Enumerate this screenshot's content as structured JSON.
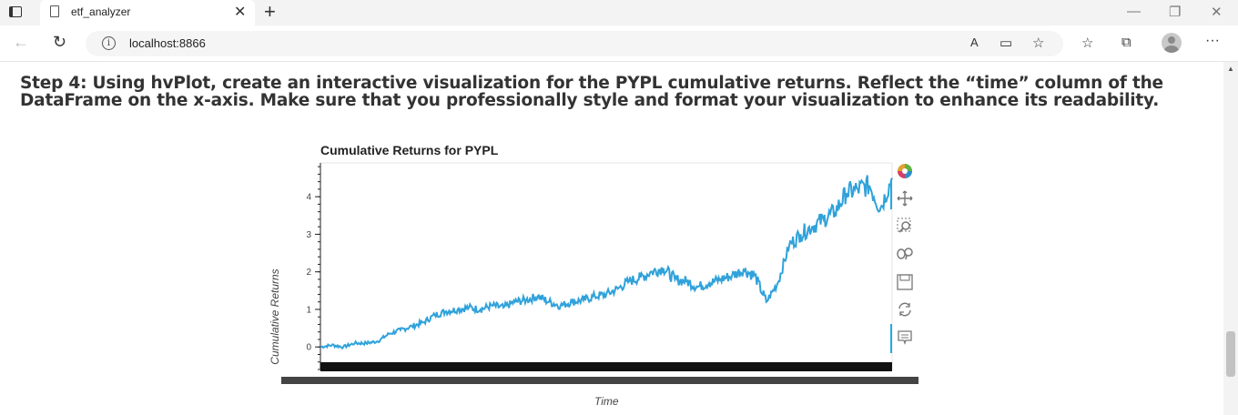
{
  "browser": {
    "tab": {
      "title": "etf_analyzer"
    },
    "address": {
      "url": "localhost:8866"
    }
  },
  "page": {
    "heading": "Step 4: Using hvPlot, create an interactive visualization for the PYPL cumulative returns. Reflect the “time” column of the DataFrame on the x-axis. Make sure that you professionally style and format your visualization to enhance its readability."
  },
  "chart_data": {
    "type": "line",
    "title": "Cumulative Returns for PYPL",
    "xlabel": "Time",
    "ylabel": "Cumulative Returns",
    "yticks": [
      0,
      1,
      2,
      3,
      4
    ],
    "ylim": [
      -0.6,
      4.9
    ],
    "xlim": [
      0,
      100
    ],
    "line_color": "#30a2da",
    "grid": false,
    "series": [
      {
        "x": [
          0,
          2,
          4,
          6,
          8,
          10,
          12,
          14,
          16,
          18,
          20,
          22,
          24,
          26,
          28,
          30,
          32,
          34,
          36,
          38,
          40,
          42,
          44,
          46,
          48,
          50,
          52,
          54,
          56,
          58,
          60,
          62,
          64,
          66,
          68,
          70,
          72,
          74,
          76,
          78,
          80,
          82,
          84,
          86,
          88,
          90,
          92,
          94,
          96,
          98,
          100
        ],
        "values": [
          0.0,
          0.05,
          0.0,
          0.1,
          0.1,
          0.15,
          0.35,
          0.45,
          0.55,
          0.65,
          0.85,
          0.95,
          1.0,
          1.05,
          1.0,
          1.1,
          1.05,
          1.2,
          1.25,
          1.35,
          1.2,
          1.1,
          1.2,
          1.25,
          1.35,
          1.4,
          1.55,
          1.75,
          1.85,
          2.0,
          2.1,
          1.8,
          1.75,
          1.6,
          1.7,
          1.8,
          1.9,
          2.05,
          1.9,
          1.2,
          1.7,
          2.7,
          3.0,
          3.2,
          3.4,
          3.6,
          4.1,
          4.2,
          4.3,
          3.7,
          4.5
        ]
      }
    ]
  }
}
